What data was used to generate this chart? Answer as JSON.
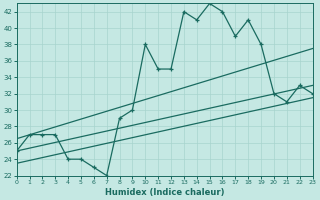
{
  "title": "",
  "xlabel": "Humidex (Indice chaleur)",
  "background_color": "#c5e8e3",
  "grid_color": "#a8d4ce",
  "line_color": "#1a6b60",
  "x_data": [
    0,
    1,
    2,
    3,
    4,
    5,
    6,
    7,
    8,
    9,
    10,
    11,
    12,
    13,
    14,
    15,
    16,
    17,
    18,
    19,
    20,
    21,
    22,
    23
  ],
  "y_main": [
    25,
    27,
    27,
    27,
    24,
    24,
    23,
    22,
    29,
    30,
    38,
    35,
    35,
    42,
    41,
    43,
    42,
    39,
    41,
    38,
    32,
    31,
    33,
    32
  ],
  "ylim": [
    22,
    43
  ],
  "yticks": [
    22,
    24,
    26,
    28,
    30,
    32,
    34,
    36,
    38,
    40,
    42
  ],
  "xlim": [
    0,
    23
  ],
  "reg_line1_x": [
    0,
    23
  ],
  "reg_line1_y": [
    25.0,
    33.0
  ],
  "reg_line2_x": [
    0,
    23
  ],
  "reg_line2_y": [
    23.5,
    31.5
  ],
  "reg_line3_x": [
    0,
    23
  ],
  "reg_line3_y": [
    26.5,
    37.5
  ]
}
